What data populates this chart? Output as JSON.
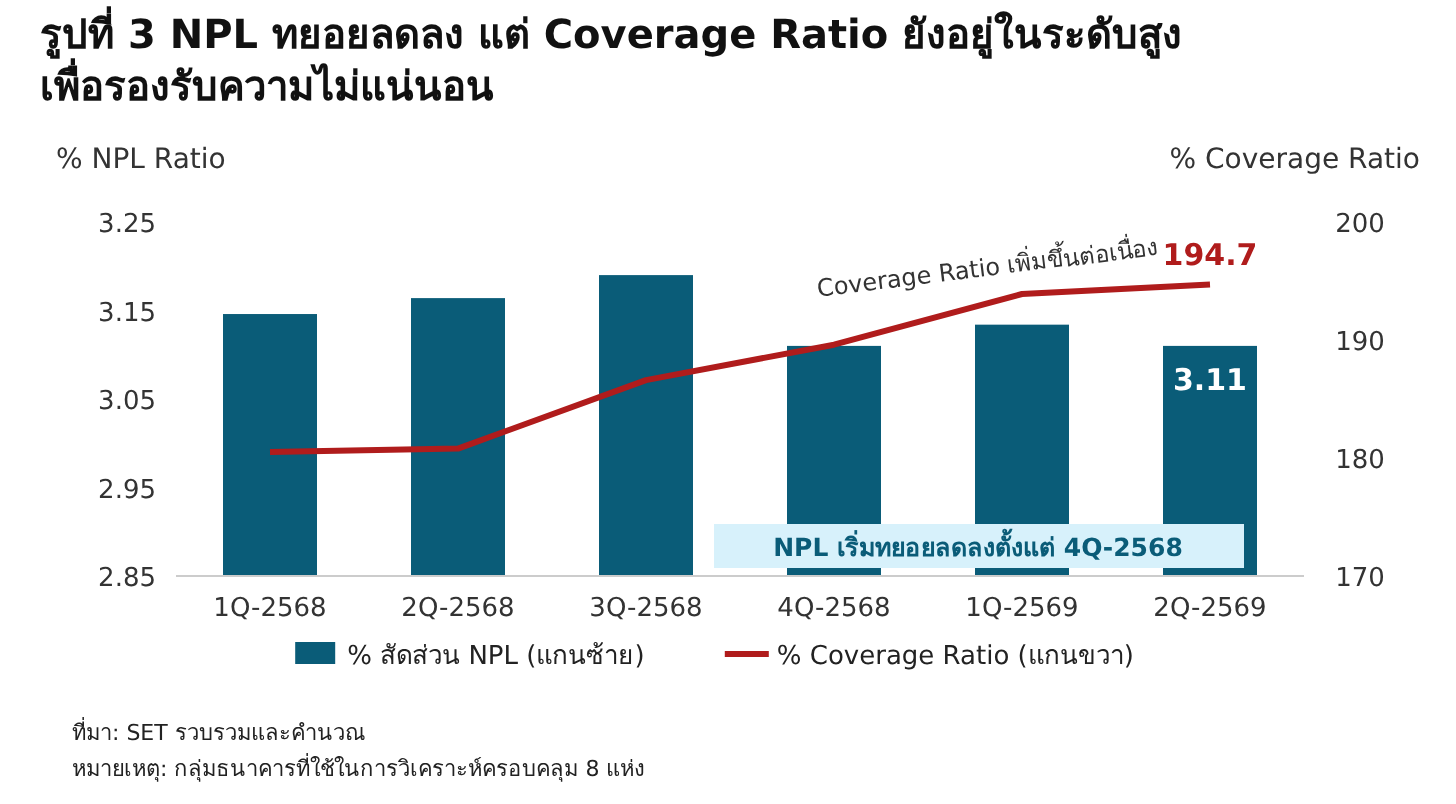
{
  "chart_data": {
    "type": "bar",
    "title": "รูปที่ 3  NPL ทยอยลดลง แต่ Coverage Ratio ยังอยู่ในระดับสูง\nเพื่อรองรับความไม่แน่นอน",
    "ylabel": "% NPL Ratio",
    "y2label": "% Coverage Ratio",
    "categories": [
      "1Q-2568",
      "2Q-2568",
      "3Q-2568",
      "4Q-2568",
      "1Q-2569",
      "2Q-2569"
    ],
    "series": [
      {
        "name": "% สัดส่วน NPL (แกนซ้าย)",
        "color": "#0a5c78",
        "values": [
          3.146,
          3.164,
          3.19,
          3.11,
          3.134,
          3.11
        ],
        "value_labels": [
          null,
          null,
          null,
          null,
          null,
          "3.11"
        ]
      },
      {
        "name": "% Coverage Ratio (แกนขวา)",
        "type": "line",
        "axis": "y2",
        "color": "#b01c1c",
        "values": [
          180.5,
          180.8,
          186.6,
          189.6,
          193.9,
          194.7
        ],
        "value_labels": [
          null,
          null,
          null,
          null,
          null,
          "194.7"
        ]
      }
    ],
    "ylim": [
      2.85,
      3.25
    ],
    "yticks": [
      {
        "value": 2.85,
        "label": "2.85"
      },
      {
        "value": 2.95,
        "label": "2.95"
      },
      {
        "value": 3.05,
        "label": "3.05"
      },
      {
        "value": 3.15,
        "label": "3.15"
      },
      {
        "value": 3.25,
        "label": "3.25"
      }
    ],
    "y2lim": [
      170,
      200
    ],
    "y2ticks": [
      170,
      180,
      190,
      200
    ],
    "legend": "bottom",
    "grid": false,
    "marker": "none",
    "line_style": "solid",
    "annotations": [
      "Coverage Ratio เพิ่มขึ้นต่อเนื่อง",
      "NPL เริ่มทยอยลดลงตั้งแต่ 4Q-2568",
      "ที่มา: SET รวบรวมและคำนวณ",
      "หมายเหตุ: กลุ่มธนาคารที่ใช้ในการวิเคราะห์ครอบคลุม 8 แห่ง"
    ]
  }
}
